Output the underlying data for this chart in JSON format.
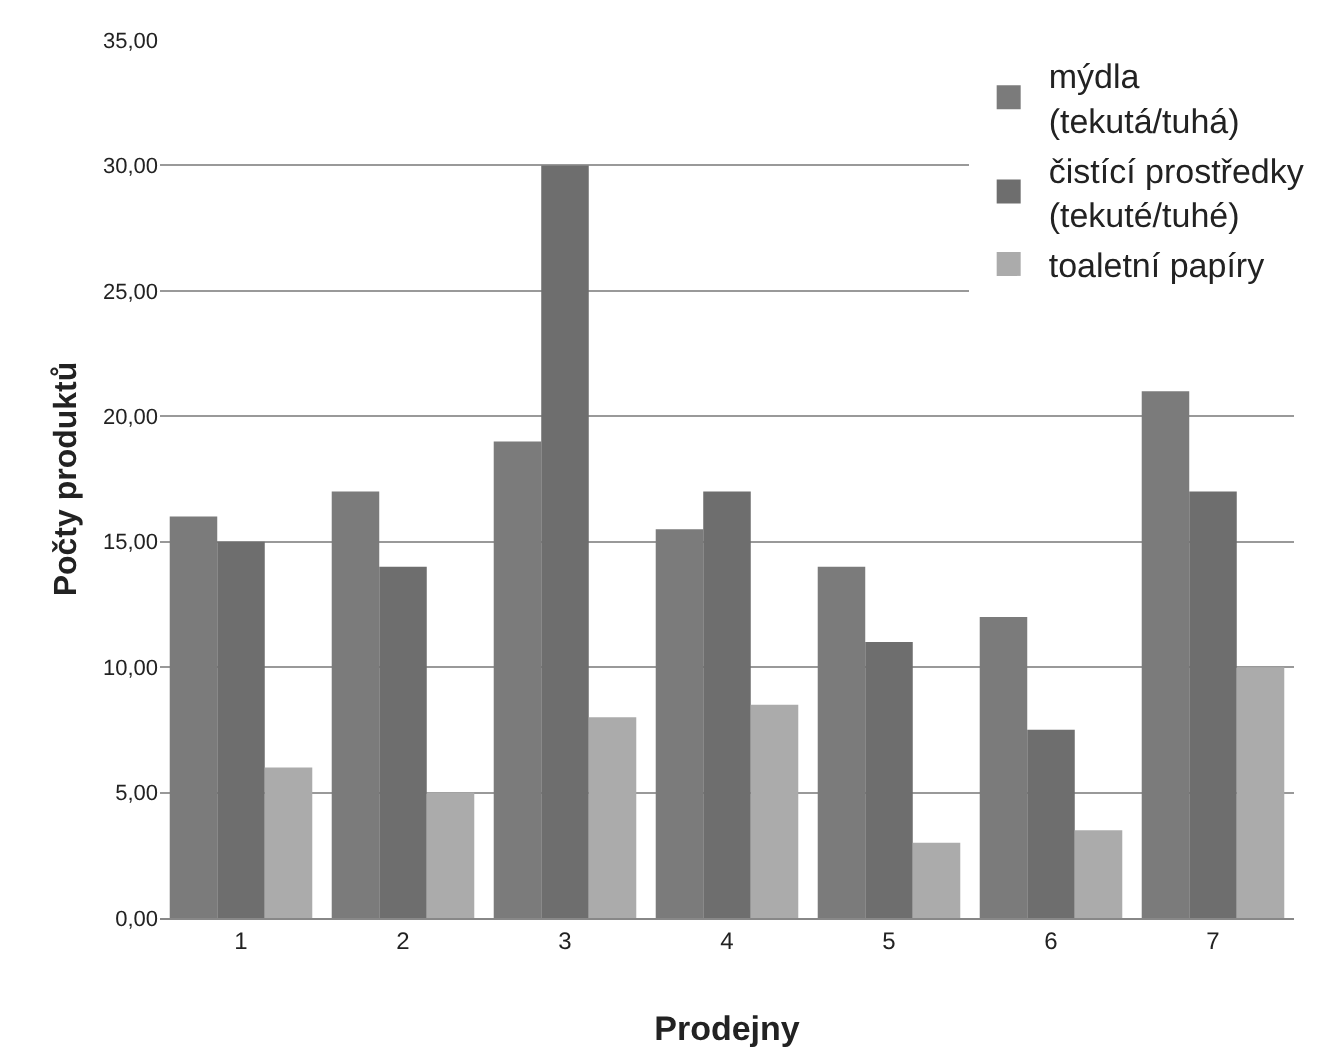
{
  "chart_data": {
    "type": "bar",
    "xlabel": "Prodejny",
    "ylabel": "Počty produktů",
    "categories": [
      "1",
      "2",
      "3",
      "4",
      "5",
      "6",
      "7"
    ],
    "series": [
      {
        "name": "mýdla (tekutá/tuhá)",
        "color": "#7b7b7b",
        "values": [
          16,
          17,
          19,
          15.5,
          14,
          12,
          21
        ]
      },
      {
        "name": "čistící prostředky (tekuté/tuhé)",
        "color": "#6e6e6e",
        "values": [
          15,
          14,
          30,
          17,
          11,
          7.5,
          17
        ]
      },
      {
        "name": "toaletní papíry",
        "color": "#ababab",
        "values": [
          6,
          5,
          8,
          8.5,
          3,
          3.5,
          10
        ]
      }
    ],
    "ylim": [
      0,
      35
    ],
    "yticks": [
      {
        "value": 0,
        "label": "0,00"
      },
      {
        "value": 5,
        "label": "5,00"
      },
      {
        "value": 10,
        "label": "10,00"
      },
      {
        "value": 15,
        "label": "15,00"
      },
      {
        "value": 20,
        "label": "20,00"
      },
      {
        "value": 25,
        "label": "25,00"
      },
      {
        "value": 30,
        "label": "30,00"
      },
      {
        "value": 35,
        "label": "35,00"
      }
    ],
    "grid": "y",
    "legend": "top right"
  }
}
